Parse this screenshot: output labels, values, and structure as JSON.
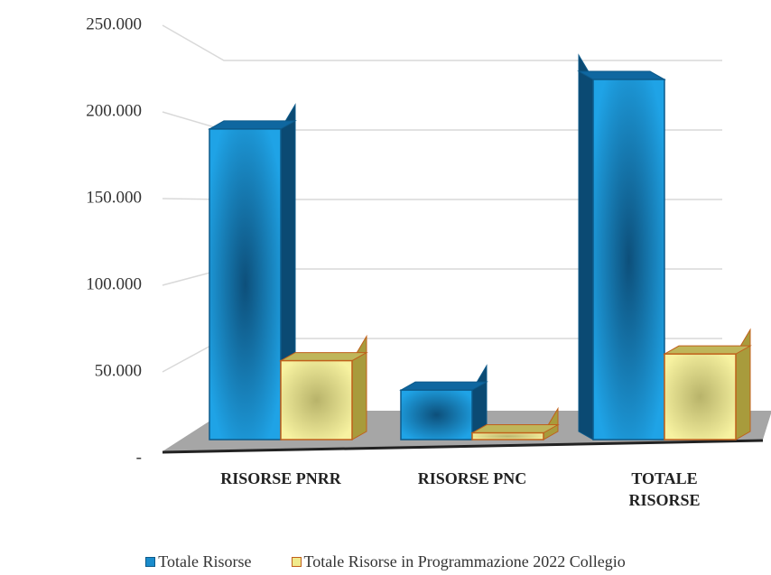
{
  "chart_data": {
    "type": "bar3d",
    "categories": [
      "RISORSE PNRR",
      "RISORSE PNC",
      "TOTALE RISORSE"
    ],
    "series": [
      {
        "name": "Totale Risorse",
        "color": "#1a8ccc",
        "values": [
          185000,
          29500,
          214500
        ]
      },
      {
        "name": "Totale Risorse in Programmazione 2022 Collegio",
        "color": "#f0ea8c",
        "values": [
          47000,
          4000,
          51000
        ]
      }
    ],
    "ylim": [
      0,
      250000
    ],
    "yticks": [
      {
        "value": 0,
        "label": "-"
      },
      {
        "value": 50000,
        "label": "50.000"
      },
      {
        "value": 100000,
        "label": "100.000"
      },
      {
        "value": 150000,
        "label": "150.000"
      },
      {
        "value": 200000,
        "label": "200.000"
      },
      {
        "value": 250000,
        "label": "250.000"
      }
    ],
    "grid": true,
    "legend": "bottom"
  }
}
